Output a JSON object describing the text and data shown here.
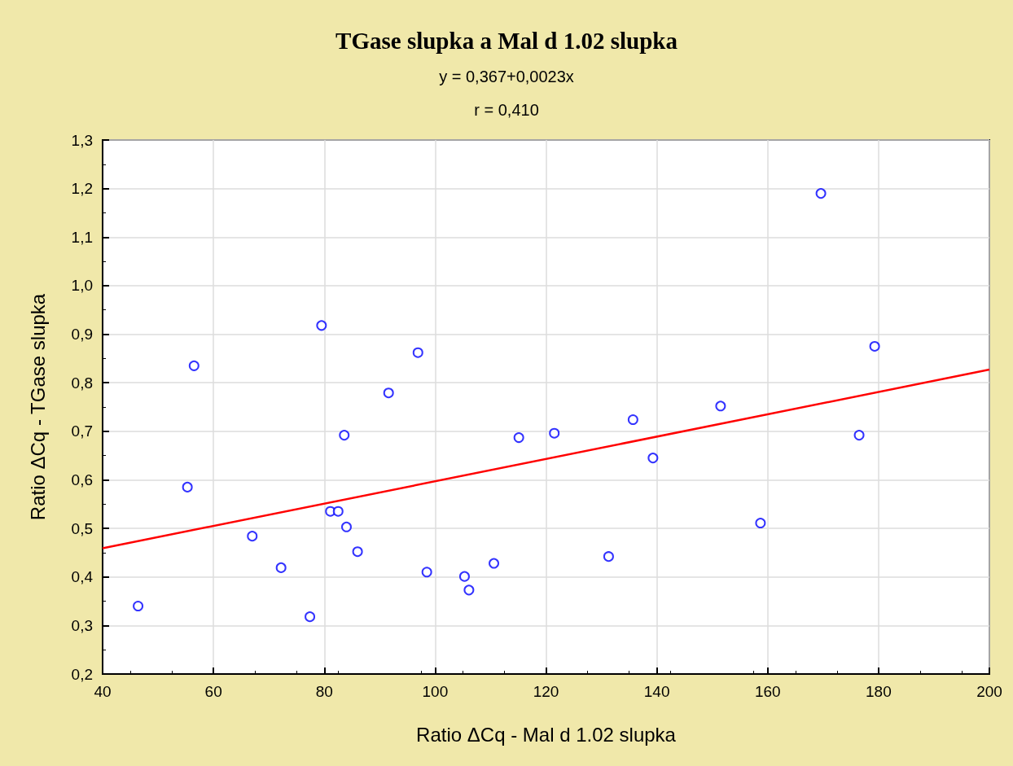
{
  "chart_data": {
    "type": "scatter",
    "title": "TGase slupka a Mal d 1.02 slupka",
    "subtitle": "y = 0,367+0,0023x",
    "annotations": [
      "r = 0,410"
    ],
    "xlabel": "Ratio ΔCq - Mal d 1.02 slupka",
    "ylabel": "Ratio ΔCq - TGase slupka",
    "xlim": [
      40,
      200
    ],
    "xticks": [
      40,
      60,
      80,
      100,
      120,
      140,
      160,
      180,
      200
    ],
    "ylim": [
      0.2,
      1.3
    ],
    "yticks": [
      {
        "value": 0.2,
        "label": "0,2"
      },
      {
        "value": 0.3,
        "label": "0,3"
      },
      {
        "value": 0.4,
        "label": "0,4"
      },
      {
        "value": 0.5,
        "label": "0,5"
      },
      {
        "value": 0.6,
        "label": "0,6"
      },
      {
        "value": 0.7,
        "label": "0,7"
      },
      {
        "value": 0.8,
        "label": "0,8"
      },
      {
        "value": 0.9,
        "label": "0,9"
      },
      {
        "value": 1.0,
        "label": "1,0"
      },
      {
        "value": 1.1,
        "label": "1,1"
      },
      {
        "value": 1.2,
        "label": "1,2"
      },
      {
        "value": 1.3,
        "label": "1,3"
      }
    ],
    "grid": true,
    "series": [
      {
        "marker": "circle",
        "color": "#0000ff",
        "x": [
          46.4,
          55.3,
          56.5,
          67.0,
          72.2,
          77.4,
          79.5,
          81.1,
          82.5,
          83.6,
          84.0,
          86.0,
          91.6,
          96.9,
          98.5,
          105.3,
          106.1,
          110.6,
          115.1,
          121.5,
          131.3,
          135.7,
          139.3,
          151.5,
          158.7,
          169.6,
          176.5,
          179.3
        ],
        "values": [
          0.34,
          0.585,
          0.835,
          0.484,
          0.419,
          0.318,
          0.918,
          0.535,
          0.535,
          0.692,
          0.503,
          0.452,
          0.779,
          0.862,
          0.41,
          0.401,
          0.373,
          0.428,
          0.687,
          0.696,
          0.442,
          0.724,
          0.645,
          0.752,
          0.511,
          1.19,
          0.692,
          0.875
        ]
      },
      {
        "type": "line",
        "color": "#ff0000",
        "x": [
          40,
          200
        ],
        "values": [
          0.459,
          0.827
        ]
      }
    ]
  }
}
